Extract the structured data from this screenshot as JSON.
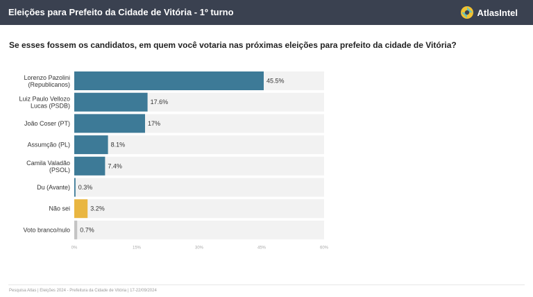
{
  "header": {
    "title": "Eleições para Prefeito da Cidade de Vitória - 1º turno",
    "brand": "AtlasIntel"
  },
  "question": "Se esses fossem os candidatos, em quem você votaria nas próximas eleições para prefeito da cidade de Vitória?",
  "footer": "Pesquisa Atlas  |  Eleições 2024 - Prefeitura da Cidade de Vitória  |  17-22/09/2024",
  "colors": {
    "header_bg": "#3a4150",
    "bar_primary": "#3d7a97",
    "bar_unsure": "#e9b641",
    "bar_blank": "#c4c4c4",
    "track": "#f2f2f2"
  },
  "chart_data": {
    "type": "bar",
    "orientation": "horizontal",
    "categories": [
      [
        "Lorenzo Pazolini",
        "(Republicanos)"
      ],
      [
        "Luiz Paulo Vellozo",
        "Lucas (PSDB)"
      ],
      [
        "João Coser (PT)"
      ],
      [
        "Assumção (PL)"
      ],
      [
        "Camila Valadão",
        "(PSOL)"
      ],
      [
        "Du (Avante)"
      ],
      [
        "Não sei"
      ],
      [
        "Voto branco/nulo"
      ]
    ],
    "values": [
      45.5,
      17.6,
      17,
      8.1,
      7.4,
      0.3,
      3.2,
      0.7
    ],
    "value_labels": [
      "45.5%",
      "17.6%",
      "17%",
      "8.1%",
      "7.4%",
      "0.3%",
      "3.2%",
      "0.7%"
    ],
    "bar_colors": [
      "#3d7a97",
      "#3d7a97",
      "#3d7a97",
      "#3d7a97",
      "#3d7a97",
      "#3d7a97",
      "#e9b641",
      "#c4c4c4"
    ],
    "xlim": [
      0,
      60
    ],
    "xticks": [
      0,
      15,
      30,
      45,
      60
    ],
    "xtick_labels": [
      "0%",
      "15%",
      "30%",
      "45%",
      "60%"
    ],
    "grid": false
  }
}
